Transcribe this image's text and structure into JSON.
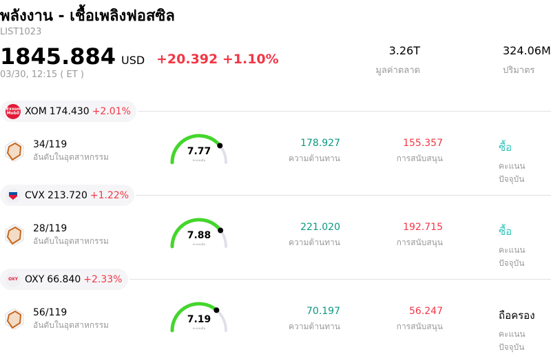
{
  "header": {
    "title": "พลังงาน - เชื้อเพลิงฟอสซิล",
    "code": "LIST1023",
    "price": "1845.884",
    "currency": "USD",
    "change": "+20.392 +1.10%",
    "time": "03/30, 12:15 ( ET )",
    "market_cap": {
      "value": "3.26T",
      "label": "มูลค่าตลาด"
    },
    "volume": {
      "value": "324.06M",
      "label": "ปริมาตร"
    }
  },
  "colors": {
    "up": "#f23645",
    "resistance": "#089981",
    "buy": "#2ec4b6",
    "gauge": "#44d62c"
  },
  "labels": {
    "rank": "อันดับในอุตสาหกรรม",
    "gauge": "คะแนนหุ้น",
    "resistance": "ความต้านทาน",
    "support": "การสนับสนุน",
    "rating": "คะแนนปัจจุบัน"
  },
  "stocks": [
    {
      "ticker": "XOM",
      "price": "174.430",
      "change": "+2.01%",
      "logo": "ExxonMobil",
      "rank": "34/119",
      "score": "7.77",
      "score_value": 7.77,
      "resistance": "178.927",
      "support": "155.357",
      "rating": "ซื้อ",
      "rating_color": "#2ec4b6"
    },
    {
      "ticker": "CVX",
      "price": "213.720",
      "change": "+1.22%",
      "logo": "Chevron",
      "rank": "28/119",
      "score": "7.88",
      "score_value": 7.88,
      "resistance": "221.020",
      "support": "192.715",
      "rating": "ซื้อ",
      "rating_color": "#2ec4b6"
    },
    {
      "ticker": "OXY",
      "price": "66.840",
      "change": "+2.33%",
      "logo": "OXY",
      "rank": "56/119",
      "score": "7.19",
      "score_value": 7.19,
      "resistance": "70.197",
      "support": "56.247",
      "rating": "ถือครอง",
      "rating_color": "#000000"
    }
  ]
}
